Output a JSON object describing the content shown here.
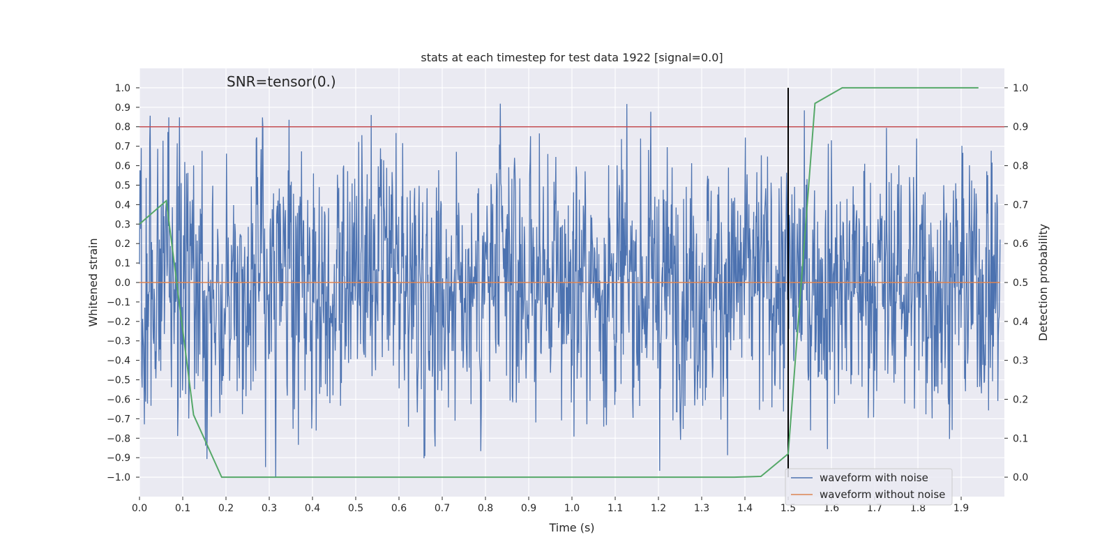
{
  "chart_data": {
    "type": "line",
    "title": "stats at each timestep for test data 1922 [signal=0.0]",
    "annotation": "SNR=tensor(0.)",
    "xlabel": "Time (s)",
    "ylabel": "Whitened strain",
    "ylabel_right": "Detection probability",
    "xlim": [
      0.0,
      2.0
    ],
    "ylim": [
      -1.1,
      1.1
    ],
    "ylim_right": [
      -0.05,
      1.05
    ],
    "x_ticks": [
      "0.0",
      "0.1",
      "0.2",
      "0.3",
      "0.4",
      "0.5",
      "0.6",
      "0.7",
      "0.8",
      "0.9",
      "1.0",
      "1.1",
      "1.2",
      "1.3",
      "1.4",
      "1.5",
      "1.6",
      "1.7",
      "1.8",
      "1.9"
    ],
    "y_ticks": [
      "1.0",
      "0.9",
      "0.8",
      "0.7",
      "0.6",
      "0.5",
      "0.4",
      "0.3",
      "0.2",
      "0.1",
      "0.0",
      "−0.1",
      "−0.2",
      "−0.3",
      "−0.4",
      "−0.5",
      "−0.6",
      "−0.7",
      "−0.8",
      "−0.9",
      "−1.0"
    ],
    "y_ticks_right": [
      "1.0",
      "0.9",
      "0.8",
      "0.7",
      "0.6",
      "0.5",
      "0.4",
      "0.3",
      "0.2",
      "0.1",
      "0.0"
    ],
    "grid": true,
    "legend_position": "lower-right",
    "series": [
      {
        "name": "waveform with noise",
        "color": "#4c72b0",
        "description": "normalized noisy strain spanning -1.0 to 1.0 across 0-2 s"
      },
      {
        "name": "waveform without noise",
        "color": "#dd8452",
        "values_constant": 0.0
      }
    ],
    "detection_probability": {
      "color": "#55a868",
      "x": [
        0.0,
        0.062,
        0.125,
        0.19,
        0.25,
        1.375,
        1.437,
        1.5,
        1.562,
        1.625,
        1.94
      ],
      "y": [
        0.65,
        0.71,
        0.16,
        0.0,
        0.0,
        0.0,
        0.002,
        0.06,
        0.96,
        1.0,
        1.0
      ]
    },
    "threshold_line": {
      "y": 0.8,
      "color": "#c44e52"
    },
    "vertical_marker": {
      "x": 1.5,
      "y_range": [
        -1.0,
        1.0
      ],
      "color": "#000000"
    }
  }
}
